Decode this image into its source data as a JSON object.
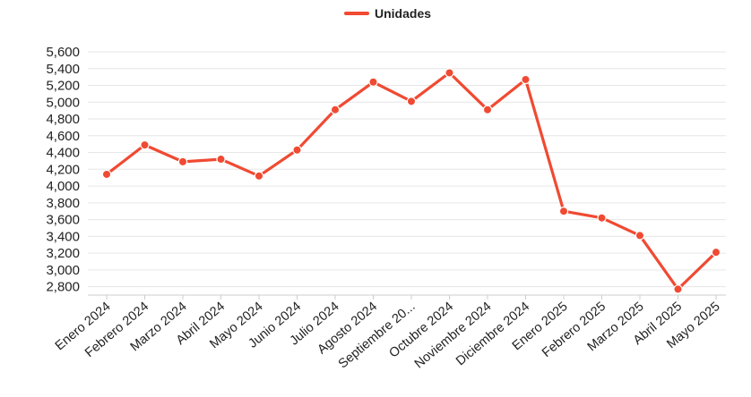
{
  "chart_data": {
    "type": "line",
    "categories": [
      "Enero 2024",
      "Febrero 2024",
      "Marzo 2024",
      "Abril 2024",
      "Mayo 2024",
      "Junio 2024",
      "Julio 2024",
      "Agosto 2024",
      "Septiembre 20...",
      "Octubre 2024",
      "Noviembre 2024",
      "Diciembre 2024",
      "Enero 2025",
      "Febrero 2025",
      "Marzo 2025",
      "Abril 2025",
      "Mayo 2025"
    ],
    "series": [
      {
        "name": "Unidades",
        "color": "#f04a32",
        "values": [
          4140,
          4490,
          4290,
          4320,
          4120,
          4430,
          4910,
          5240,
          5010,
          5350,
          4910,
          5270,
          3700,
          3620,
          3410,
          2770,
          3210
        ]
      }
    ],
    "yticks": [
      2800,
      3000,
      3200,
      3400,
      3600,
      3800,
      4000,
      4200,
      4400,
      4600,
      4800,
      5000,
      5200,
      5400,
      5600
    ],
    "ylim": [
      2700,
      5600
    ],
    "grid": true,
    "legend_position": "top-center"
  }
}
